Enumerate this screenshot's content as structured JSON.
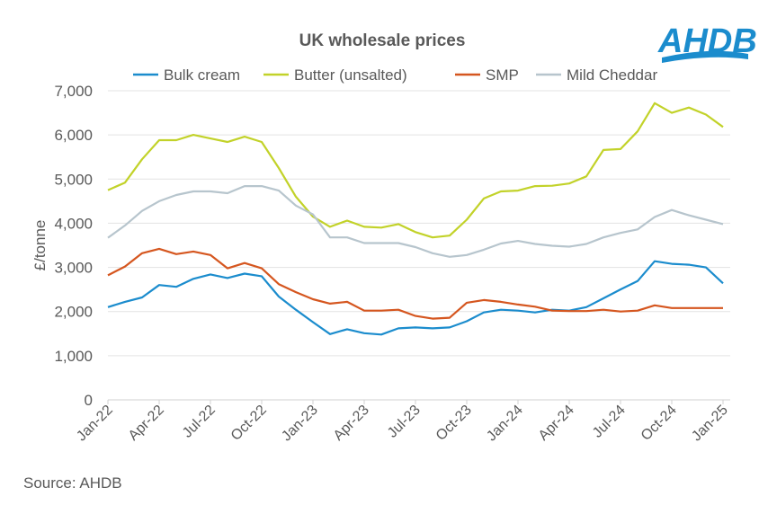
{
  "logo": {
    "text": "AHDB",
    "color": "#1b8ccd"
  },
  "source": "Source: AHDB",
  "chart_data": {
    "type": "line",
    "title": "UK wholesale prices",
    "xlabel": "",
    "ylabel": "£/tonne",
    "ylim": [
      0,
      7000
    ],
    "yticks": [
      0,
      1000,
      2000,
      3000,
      4000,
      5000,
      6000,
      7000
    ],
    "ytick_labels": [
      "0",
      "1,000",
      "2,000",
      "3,000",
      "4,000",
      "5,000",
      "6,000",
      "7,000"
    ],
    "grid": true,
    "legend": "top",
    "x": [
      "Jan-22",
      "Feb-22",
      "Mar-22",
      "Apr-22",
      "May-22",
      "Jun-22",
      "Jul-22",
      "Aug-22",
      "Sep-22",
      "Oct-22",
      "Nov-22",
      "Dec-22",
      "Jan-23",
      "Feb-23",
      "Mar-23",
      "Apr-23",
      "May-23",
      "Jun-23",
      "Jul-23",
      "Aug-23",
      "Sep-23",
      "Oct-23",
      "Nov-23",
      "Dec-23",
      "Jan-24",
      "Feb-24",
      "Mar-24",
      "Apr-24",
      "May-24",
      "Jun-24",
      "Jul-24",
      "Aug-24",
      "Sep-24",
      "Oct-24",
      "Nov-24",
      "Dec-24",
      "Jan-25"
    ],
    "xtick_labels": [
      "Jan-22",
      "Apr-22",
      "Jul-22",
      "Oct-22",
      "Jan-23",
      "Apr-23",
      "Jul-23",
      "Oct-23",
      "Jan-24",
      "Apr-24",
      "Jul-24",
      "Oct-24",
      "Jan-25"
    ],
    "series": [
      {
        "name": "Bulk cream",
        "color": "#1b8ccd",
        "values": [
          2100,
          2220,
          2320,
          2600,
          2560,
          2740,
          2840,
          2760,
          2860,
          2800,
          2340,
          2040,
          1760,
          1490,
          1600,
          1510,
          1480,
          1620,
          1640,
          1620,
          1640,
          1780,
          1980,
          2040,
          2020,
          1980,
          2040,
          2020,
          2100,
          2300,
          2500,
          2690,
          3140,
          3080,
          3060,
          3000,
          2640
        ]
      },
      {
        "name": "Butter (unsalted)",
        "color": "#c2d229",
        "values": [
          4750,
          4920,
          5450,
          5880,
          5880,
          6000,
          5920,
          5840,
          5960,
          5840,
          5250,
          4600,
          4150,
          3920,
          4060,
          3920,
          3900,
          3980,
          3800,
          3680,
          3720,
          4080,
          4560,
          4720,
          4740,
          4840,
          4850,
          4900,
          5060,
          5660,
          5680,
          6080,
          6720,
          6500,
          6620,
          6460,
          6180
        ]
      },
      {
        "name": "SMP",
        "color": "#d5561f",
        "values": [
          2820,
          3020,
          3320,
          3420,
          3300,
          3360,
          3280,
          2980,
          3100,
          2980,
          2620,
          2440,
          2280,
          2180,
          2220,
          2020,
          2020,
          2040,
          1900,
          1840,
          1860,
          2200,
          2260,
          2220,
          2160,
          2110,
          2020,
          2010,
          2010,
          2040,
          2000,
          2020,
          2140,
          2080,
          2080,
          2080,
          2080
        ]
      },
      {
        "name": "Mild Cheddar",
        "color": "#b7c5cd",
        "values": [
          3670,
          3950,
          4280,
          4500,
          4640,
          4720,
          4720,
          4680,
          4840,
          4840,
          4740,
          4400,
          4200,
          3680,
          3680,
          3550,
          3550,
          3550,
          3460,
          3320,
          3240,
          3280,
          3400,
          3540,
          3600,
          3530,
          3490,
          3470,
          3530,
          3680,
          3780,
          3860,
          4140,
          4300,
          4180,
          4080,
          3980
        ]
      }
    ]
  }
}
